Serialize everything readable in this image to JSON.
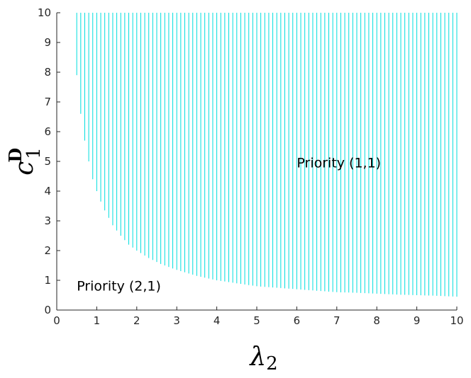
{
  "chart_data": {
    "type": "area",
    "description_free": true,
    "xlim": [
      0,
      10
    ],
    "ylim": [
      0,
      10
    ],
    "xticks": [
      "0",
      "1",
      "2",
      "3",
      "4",
      "5",
      "6",
      "7",
      "8",
      "9",
      "10"
    ],
    "yticks": [
      "0",
      "1",
      "2",
      "3",
      "4",
      "5",
      "6",
      "7",
      "8",
      "9",
      "10"
    ],
    "xlabel": "λ2",
    "ylabel": "c1D",
    "xlabel_main": "λ",
    "xlabel_sub": "2",
    "ylabel_main": "c",
    "ylabel_sub": "1",
    "ylabel_sup": "D",
    "region_labels": [
      {
        "text": "Priority (1,1)",
        "x": 6.0,
        "y": 4.8
      },
      {
        "text": "Priority (2,1)",
        "x": 0.5,
        "y": 0.65
      }
    ],
    "grid": false,
    "fill_color": "#00dede",
    "boundary": {
      "x": [
        0.4,
        0.5,
        0.6,
        0.7,
        0.8,
        0.9,
        1.0,
        1.1,
        1.2,
        1.4,
        1.6,
        1.8,
        2.0,
        2.3,
        2.6,
        3.0,
        3.5,
        4.0,
        4.5,
        5.0,
        5.5,
        6.0,
        6.5,
        7.0,
        7.5,
        8.0,
        8.5,
        9.0,
        9.5,
        10.0
      ],
      "y": [
        10.0,
        7.9,
        6.6,
        5.7,
        5.0,
        4.4,
        4.0,
        3.65,
        3.35,
        2.85,
        2.5,
        2.2,
        2.0,
        1.75,
        1.55,
        1.35,
        1.15,
        1.0,
        0.9,
        0.8,
        0.75,
        0.7,
        0.65,
        0.6,
        0.58,
        0.55,
        0.52,
        0.5,
        0.48,
        0.45
      ]
    },
    "hatch_step": 0.1
  }
}
